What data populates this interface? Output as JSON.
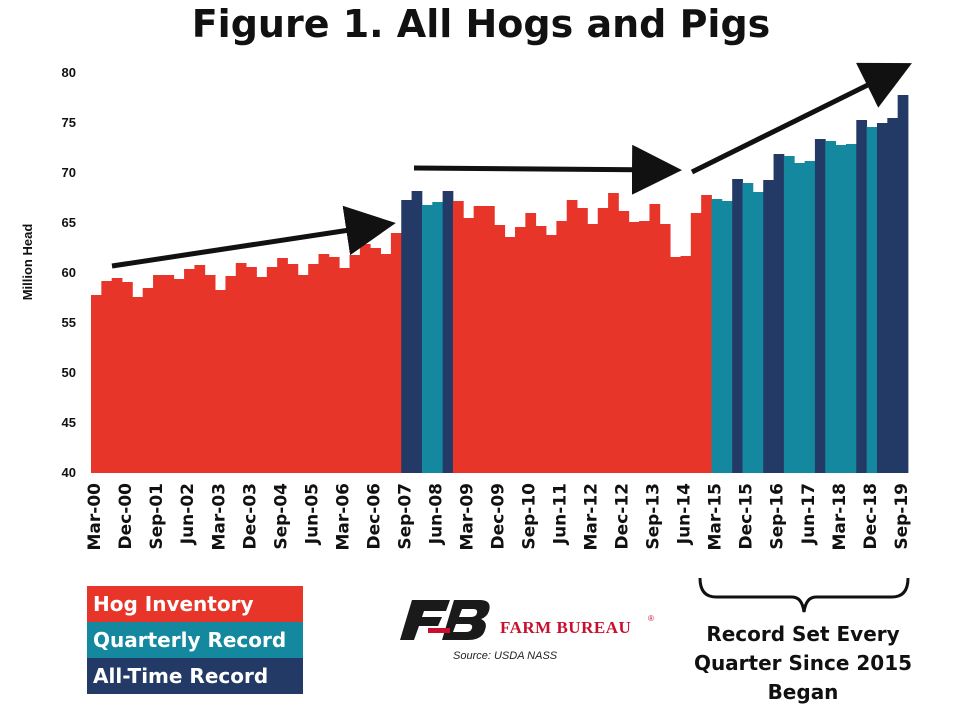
{
  "title": "Figure 1. All Hogs and Pigs",
  "colors": {
    "hog_inventory": "#E8352A",
    "quarterly_record": "#14889E",
    "all_time_record": "#233A66",
    "arrow": "#111111"
  },
  "legend": {
    "hog_inventory": "Hog Inventory",
    "quarterly_record": "Quarterly Record",
    "all_time_record": "All-Time Record"
  },
  "logo": {
    "text": "FARM BUREAU",
    "mark": "®",
    "icon": "farm-bureau-fb-logo"
  },
  "source": "Source:  USDA NASS",
  "annotation": "Record Set Every Quarter Since 2015 Began",
  "chart_data": {
    "type": "bar",
    "ylabel": "Million Head",
    "ylim": [
      40,
      80
    ],
    "yticks": [
      40,
      45,
      50,
      55,
      60,
      65,
      70,
      75,
      80
    ],
    "x_tick_labels": [
      "Mar-00",
      "Dec-00",
      "Sep-01",
      "Jun-02",
      "Mar-03",
      "Dec-03",
      "Sep-04",
      "Jun-05",
      "Mar-06",
      "Dec-06",
      "Sep-07",
      "Jun-08",
      "Mar-09",
      "Dec-09",
      "Sep-10",
      "Jun-11",
      "Mar-12",
      "Dec-12",
      "Sep-13",
      "Jun-14",
      "Mar-15",
      "Dec-15",
      "Sep-16",
      "Jun-17",
      "Mar-18",
      "Dec-18",
      "Sep-19"
    ],
    "categories": [
      "Mar-00",
      "Jun-00",
      "Sep-00",
      "Dec-00",
      "Mar-01",
      "Jun-01",
      "Sep-01",
      "Dec-01",
      "Mar-02",
      "Jun-02",
      "Sep-02",
      "Dec-02",
      "Mar-03",
      "Jun-03",
      "Sep-03",
      "Dec-03",
      "Mar-04",
      "Jun-04",
      "Sep-04",
      "Dec-04",
      "Mar-05",
      "Jun-05",
      "Sep-05",
      "Dec-05",
      "Mar-06",
      "Jun-06",
      "Sep-06",
      "Dec-06",
      "Mar-07",
      "Jun-07",
      "Sep-07",
      "Dec-07",
      "Mar-08",
      "Jun-08",
      "Sep-08",
      "Dec-08",
      "Mar-09",
      "Jun-09",
      "Sep-09",
      "Dec-09",
      "Mar-10",
      "Jun-10",
      "Sep-10",
      "Dec-10",
      "Mar-11",
      "Jun-11",
      "Sep-11",
      "Dec-11",
      "Mar-12",
      "Jun-12",
      "Sep-12",
      "Dec-12",
      "Mar-13",
      "Jun-13",
      "Sep-13",
      "Dec-13",
      "Mar-14",
      "Jun-14",
      "Sep-14",
      "Dec-14",
      "Mar-15",
      "Jun-15",
      "Sep-15",
      "Dec-15",
      "Mar-16",
      "Jun-16",
      "Sep-16",
      "Dec-16",
      "Mar-17",
      "Jun-17",
      "Sep-17",
      "Dec-17",
      "Mar-18",
      "Jun-18",
      "Sep-18",
      "Dec-18",
      "Mar-19",
      "Jun-19",
      "Sep-19"
    ],
    "values": [
      57.8,
      59.2,
      59.5,
      59.1,
      57.6,
      58.5,
      59.8,
      59.8,
      59.4,
      60.4,
      60.8,
      59.8,
      58.3,
      59.7,
      61.0,
      60.6,
      59.6,
      60.6,
      61.5,
      60.9,
      59.8,
      60.9,
      61.9,
      61.6,
      60.5,
      61.8,
      62.9,
      62.5,
      61.9,
      64.0,
      67.3,
      68.2,
      66.8,
      67.1,
      68.2,
      67.2,
      65.5,
      66.7,
      66.7,
      64.8,
      63.6,
      64.6,
      66.0,
      64.7,
      63.8,
      65.2,
      67.3,
      66.5,
      64.9,
      66.5,
      68.0,
      66.2,
      65.1,
      65.2,
      66.9,
      64.9,
      61.6,
      61.7,
      66.0,
      67.8,
      67.4,
      67.2,
      69.4,
      69.0,
      68.1,
      69.3,
      71.9,
      71.7,
      71.0,
      71.2,
      73.4,
      73.2,
      72.8,
      72.9,
      75.3,
      74.6,
      75.0,
      75.5,
      77.8
    ],
    "status": [
      "inventory",
      "inventory",
      "inventory",
      "inventory",
      "inventory",
      "inventory",
      "inventory",
      "inventory",
      "inventory",
      "inventory",
      "inventory",
      "inventory",
      "inventory",
      "inventory",
      "inventory",
      "inventory",
      "inventory",
      "inventory",
      "inventory",
      "inventory",
      "inventory",
      "inventory",
      "inventory",
      "inventory",
      "inventory",
      "inventory",
      "inventory",
      "inventory",
      "inventory",
      "inventory",
      "all_time",
      "all_time",
      "quarterly",
      "quarterly",
      "all_time",
      "inventory",
      "inventory",
      "inventory",
      "inventory",
      "inventory",
      "inventory",
      "inventory",
      "inventory",
      "inventory",
      "inventory",
      "inventory",
      "inventory",
      "inventory",
      "inventory",
      "inventory",
      "inventory",
      "inventory",
      "inventory",
      "inventory",
      "inventory",
      "inventory",
      "inventory",
      "inventory",
      "inventory",
      "inventory",
      "quarterly",
      "quarterly",
      "all_time",
      "quarterly",
      "quarterly",
      "all_time",
      "all_time",
      "quarterly",
      "quarterly",
      "quarterly",
      "all_time",
      "quarterly",
      "quarterly",
      "quarterly",
      "all_time",
      "quarterly",
      "all_time",
      "all_time",
      "all_time"
    ],
    "grid": false,
    "legend_position": "bottom-left"
  }
}
